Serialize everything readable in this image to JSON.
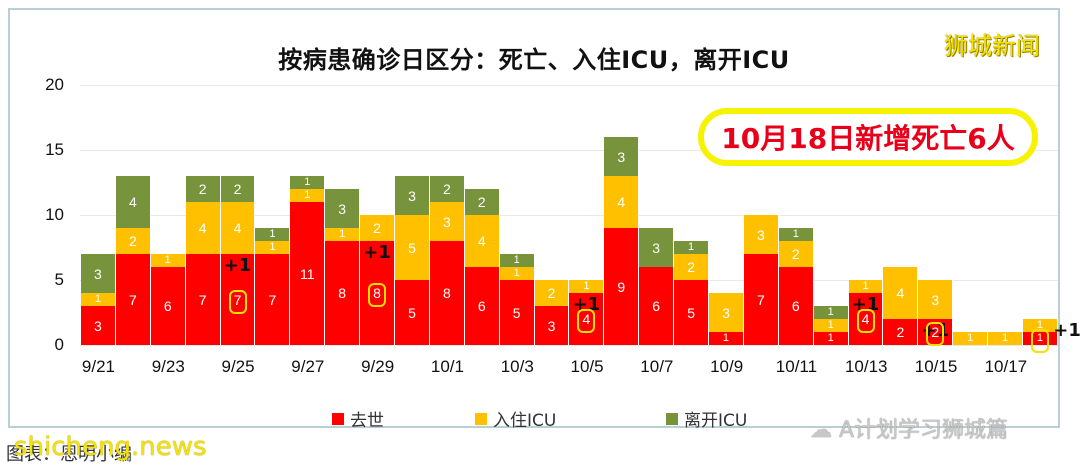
{
  "header": {
    "title": "按病患确诊日区分：死亡、入住ICU，离开ICU",
    "brand": "狮城新闻",
    "callout": "10月18日新增死亡6人"
  },
  "legend": {
    "items": [
      {
        "label": "去世",
        "color": "#ff0000"
      },
      {
        "label": "入住ICU",
        "color": "#ffc000"
      },
      {
        "label": "离开ICU",
        "color": "#77933c"
      }
    ]
  },
  "footer": {
    "source": "图表：恩明小编",
    "watermark": "shicheng.news",
    "wechat_account": "A计划学习狮城篇"
  },
  "chart_data": {
    "type": "bar",
    "stacked": true,
    "title": "按病患确诊日区分：死亡、入住ICU，离开ICU",
    "xlabel": "",
    "ylabel": "",
    "ylim": [
      0,
      20
    ],
    "yticks": [
      0,
      5,
      10,
      15,
      20
    ],
    "grid": true,
    "legend_position": "bottom",
    "categories": [
      "9/21",
      "9/22",
      "9/23",
      "9/24",
      "9/25",
      "9/26",
      "9/27",
      "9/28",
      "9/29",
      "9/30",
      "10/1",
      "10/2",
      "10/3",
      "10/4",
      "10/5",
      "10/6",
      "10/7",
      "10/8",
      "10/9",
      "10/10",
      "10/11",
      "10/12",
      "10/13",
      "10/14",
      "10/15",
      "10/16",
      "10/17",
      "10/18"
    ],
    "xtick_labels": [
      "9/21",
      "9/23",
      "9/25",
      "9/27",
      "9/29",
      "10/1",
      "10/3",
      "10/5",
      "10/7",
      "10/9",
      "10/11",
      "10/13",
      "10/15",
      "10/17"
    ],
    "series": [
      {
        "name": "去世",
        "color": "#ff0000",
        "values": [
          3,
          7,
          6,
          7,
          7,
          7,
          11,
          8,
          8,
          5,
          8,
          6,
          5,
          3,
          4,
          9,
          6,
          5,
          1,
          7,
          6,
          1,
          4,
          2,
          2,
          0,
          0,
          1
        ]
      },
      {
        "name": "入住ICU",
        "color": "#ffc000",
        "values": [
          1,
          2,
          1,
          4,
          4,
          1,
          1,
          1,
          2,
          5,
          3,
          4,
          1,
          2,
          1,
          4,
          0,
          2,
          3,
          3,
          2,
          1,
          1,
          4,
          3,
          1,
          1,
          1
        ]
      },
      {
        "name": "离开ICU",
        "color": "#77933c",
        "values": [
          3,
          4,
          0,
          2,
          2,
          1,
          1,
          3,
          0,
          3,
          2,
          2,
          1,
          0,
          0,
          3,
          3,
          1,
          0,
          0,
          1,
          1,
          0,
          0,
          0,
          0,
          0,
          0
        ]
      }
    ],
    "annotations": [
      {
        "category": "9/25",
        "text": "+1",
        "highlight": "7"
      },
      {
        "category": "9/29",
        "text": "+1",
        "highlight": "8"
      },
      {
        "category": "10/5",
        "text": "+1",
        "highlight": "4"
      },
      {
        "category": "10/13",
        "text": "+1",
        "highlight": "4"
      },
      {
        "category": "10/15",
        "text": "+1",
        "highlight": "2"
      },
      {
        "category": "10/18",
        "text": "+1",
        "highlight": "1"
      }
    ]
  }
}
